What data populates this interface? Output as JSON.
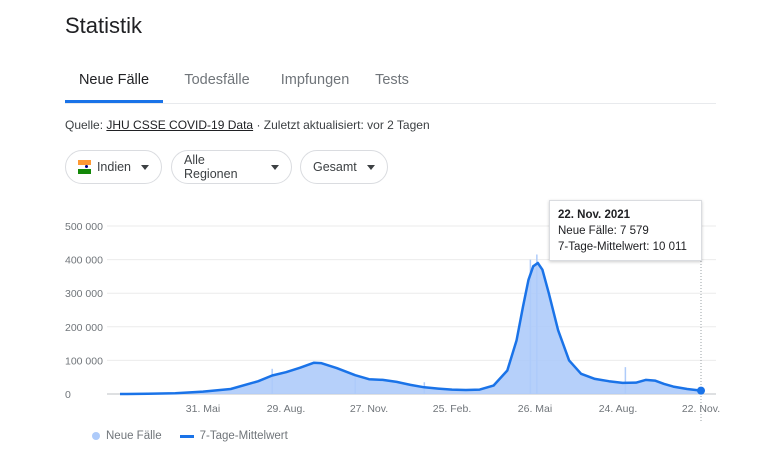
{
  "page": {
    "title": "Statistik"
  },
  "tabs": [
    {
      "label": "Neue Fälle",
      "active": true
    },
    {
      "label": "Todesfälle",
      "active": false
    },
    {
      "label": "Impfungen",
      "active": false
    },
    {
      "label": "Tests",
      "active": false
    }
  ],
  "source": {
    "prefix": "Quelle:",
    "link": "JHU CSSE COVID-19 Data",
    "suffix": "· Zuletzt aktualisiert: vor 2 Tagen"
  },
  "filters": {
    "country": {
      "label": "Indien",
      "icon": "india-flag-icon"
    },
    "region": {
      "label": "Alle Regionen"
    },
    "period": {
      "label": "Gesamt"
    }
  },
  "tooltip": {
    "date": "22. Nov. 2021",
    "new_cases": "Neue Fälle: 7 579",
    "avg": "7-Tage-Mittelwert: 10 011"
  },
  "legend": {
    "cases": "Neue Fälle",
    "avg": "7-Tage-Mittelwert"
  },
  "colors": {
    "accent": "#1a73e8",
    "area": "#aecbfa",
    "flag_saffron": "#ff9933",
    "flag_green": "#138808",
    "flag_chakra": "#000080"
  },
  "chart_data": {
    "type": "area",
    "y_ticks": [
      "500 000",
      "400 000",
      "300 000",
      "200 000",
      "100 000",
      "0"
    ],
    "ylim": [
      0,
      500000
    ],
    "x_ticks": [
      "31. Mai",
      "29. Aug.",
      "27. Nov.",
      "25. Feb.",
      "26. Mai",
      "24. Aug.",
      "22. Nov."
    ],
    "x_tick_days": [
      90,
      180,
      270,
      360,
      450,
      540,
      630
    ],
    "xlim": [
      0,
      630
    ],
    "series": [
      {
        "name": "7-Tage-Mittelwert",
        "points": [
          [
            0,
            0
          ],
          [
            30,
            500
          ],
          [
            60,
            2000
          ],
          [
            90,
            7000
          ],
          [
            120,
            15000
          ],
          [
            150,
            38000
          ],
          [
            165,
            55000
          ],
          [
            180,
            65000
          ],
          [
            195,
            78000
          ],
          [
            210,
            93000
          ],
          [
            218,
            92000
          ],
          [
            235,
            77000
          ],
          [
            255,
            56000
          ],
          [
            270,
            44000
          ],
          [
            285,
            42000
          ],
          [
            300,
            36000
          ],
          [
            315,
            27000
          ],
          [
            330,
            20000
          ],
          [
            345,
            16000
          ],
          [
            360,
            13000
          ],
          [
            375,
            12000
          ],
          [
            390,
            13000
          ],
          [
            405,
            25000
          ],
          [
            420,
            70000
          ],
          [
            430,
            160000
          ],
          [
            437,
            260000
          ],
          [
            443,
            340000
          ],
          [
            448,
            380000
          ],
          [
            453,
            390000
          ],
          [
            458,
            370000
          ],
          [
            465,
            300000
          ],
          [
            475,
            190000
          ],
          [
            487,
            100000
          ],
          [
            500,
            60000
          ],
          [
            515,
            45000
          ],
          [
            530,
            38000
          ],
          [
            545,
            33000
          ],
          [
            560,
            34000
          ],
          [
            570,
            42000
          ],
          [
            580,
            40000
          ],
          [
            590,
            30000
          ],
          [
            600,
            22000
          ],
          [
            615,
            15000
          ],
          [
            630,
            10011
          ]
        ]
      },
      {
        "name": "Neue Fälle",
        "spikes": [
          [
            165,
            75000
          ],
          [
            255,
            48000
          ],
          [
            330,
            35000
          ],
          [
            445,
            400000
          ],
          [
            452,
            415000
          ],
          [
            548,
            80000
          ],
          [
            630,
            7579
          ]
        ]
      }
    ]
  }
}
